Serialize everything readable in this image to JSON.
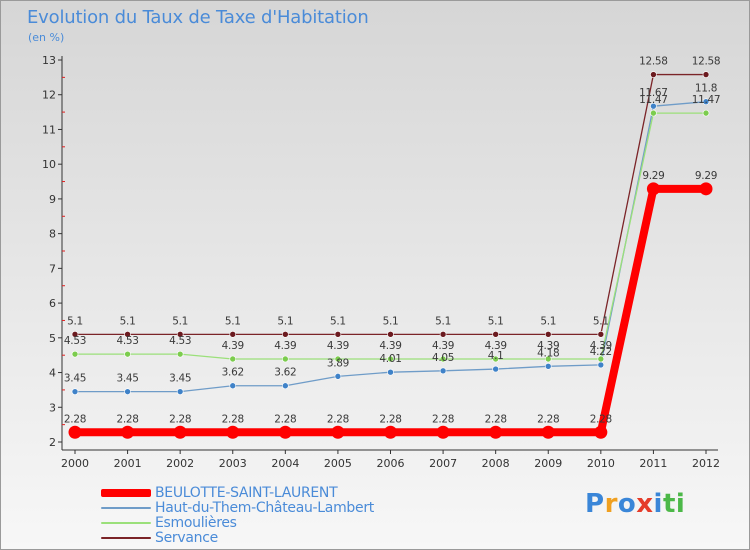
{
  "header": {
    "title": "Evolution du Taux de Taxe d'Habitation",
    "subtitle": "(en %)"
  },
  "logo": {
    "letters": [
      "P",
      "r",
      "o",
      "x",
      "i",
      "t",
      "i"
    ]
  },
  "chart_data": {
    "type": "line",
    "title": "Evolution du Taux de Taxe d'Habitation",
    "ylabel": "(en %)",
    "xlabel": "",
    "categories": [
      "2000",
      "2001",
      "2002",
      "2003",
      "2004",
      "2005",
      "2006",
      "2007",
      "2008",
      "2009",
      "2010",
      "2011",
      "2012"
    ],
    "ylim": [
      2,
      13
    ],
    "yticks": [
      "2",
      "3",
      "4",
      "5",
      "6",
      "7",
      "8",
      "9",
      "10",
      "11",
      "12",
      "13"
    ],
    "grid": false,
    "legend_position": "bottom-left",
    "series": [
      {
        "name": "Servance",
        "color": "#7b2428",
        "point_color": "#6b1a1f",
        "weight": "thin",
        "values": [
          5.1,
          5.1,
          5.1,
          5.1,
          5.1,
          5.1,
          5.1,
          5.1,
          5.1,
          5.1,
          5.1,
          12.58,
          12.58
        ],
        "labels": [
          "5.1",
          "5.1",
          "5.1",
          "5.1",
          "5.1",
          "5.1",
          "5.1",
          "5.1",
          "5.1",
          "5.1",
          "5.1",
          "12.58",
          "12.58"
        ]
      },
      {
        "name": "Haut-du-Them-Château-Lambert",
        "color": "#6f9cc8",
        "point_color": "#3f82c8",
        "weight": "thin",
        "values": [
          3.45,
          3.45,
          3.45,
          3.62,
          3.62,
          3.89,
          4.01,
          4.05,
          4.1,
          4.18,
          4.22,
          11.67,
          11.8
        ],
        "labels": [
          "3.45",
          "3.45",
          "3.45",
          "3.62",
          "3.62",
          "3.89",
          "4.01",
          "4.05",
          "4.1",
          "4.18",
          "4.22",
          "11.67",
          "11.8"
        ]
      },
      {
        "name": "Esmoulières",
        "color": "#9be07a",
        "point_color": "#7ccc4e",
        "weight": "thin",
        "values": [
          4.53,
          4.53,
          4.53,
          4.39,
          4.39,
          4.39,
          4.39,
          4.39,
          4.39,
          4.39,
          4.39,
          11.47,
          11.47
        ],
        "labels": [
          "4.53",
          "4.53",
          "4.53",
          "4.39",
          "4.39",
          "4.39",
          "4.39",
          "4.39",
          "4.39",
          "4.39",
          "4.39",
          "11.47",
          "11.47"
        ]
      },
      {
        "name": "BEULOTTE-SAINT-LAURENT",
        "color": "#ff0000",
        "point_color": "#ff0000",
        "weight": "thick",
        "values": [
          2.28,
          2.28,
          2.28,
          2.28,
          2.28,
          2.28,
          2.28,
          2.28,
          2.28,
          2.28,
          2.28,
          9.29,
          9.29
        ],
        "labels": [
          "2.28",
          "2.28",
          "2.28",
          "2.28",
          "2.28",
          "2.28",
          "2.28",
          "2.28",
          "2.28",
          "2.28",
          "2.28",
          "9.29",
          "9.29"
        ]
      }
    ],
    "legend": [
      {
        "label": "BEULOTTE-SAINT-LAURENT",
        "color": "#ff0000",
        "weight": "thick"
      },
      {
        "label": "Haut-du-Them-Château-Lambert",
        "color": "#6f9cc8",
        "weight": "thin"
      },
      {
        "label": "Esmoulières",
        "color": "#9be07a",
        "weight": "thin"
      },
      {
        "label": "Servance",
        "color": "#7b2428",
        "weight": "thin"
      }
    ]
  }
}
